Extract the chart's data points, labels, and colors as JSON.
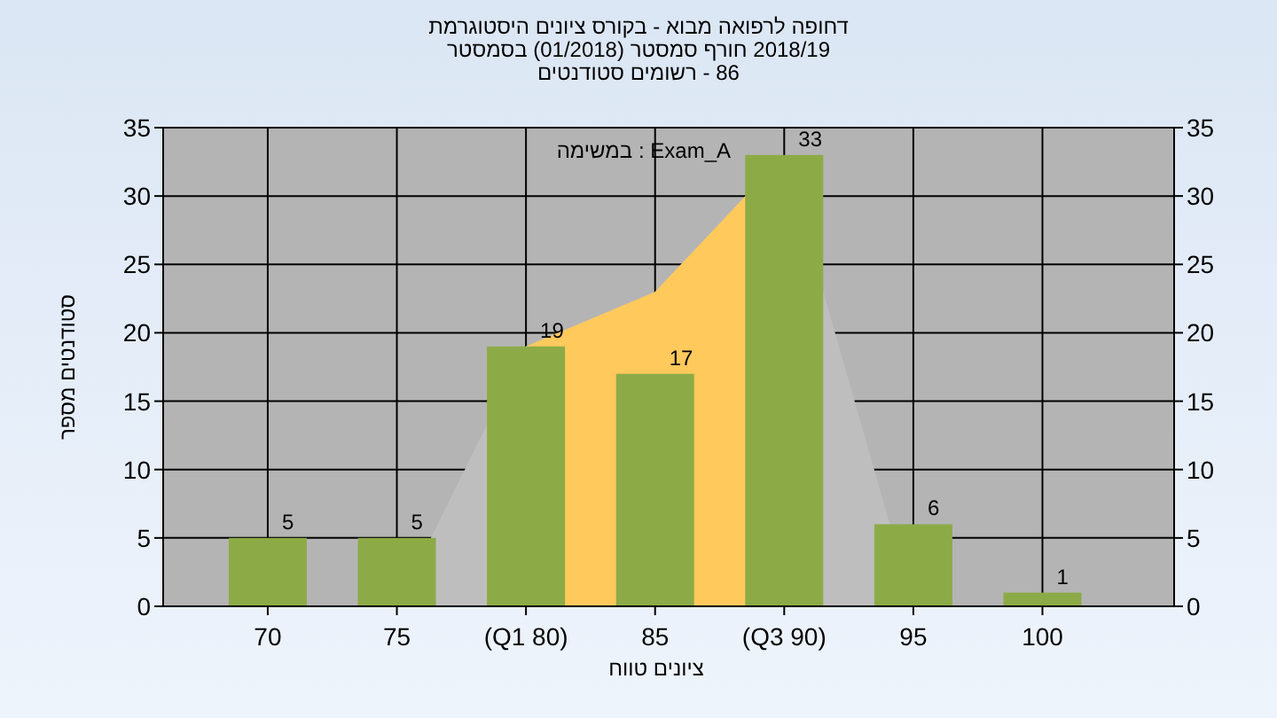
{
  "chart_data": {
    "type": "bar",
    "title": "היסטוגרמת ציונים בקורס - מבוא לרפואה דחופה",
    "subtitle": "בסמסטר (01/2018) סמסטר חורף 2018/19",
    "annotations": [
      "סטודנטים רשומים - 86",
      "במשימה : Exam_A"
    ],
    "xlabel": "טווח ציונים",
    "ylabel": "מספר סטודנטים",
    "categories": [
      "70",
      "75",
      "(Q1 80)",
      "85",
      "(Q3 90)",
      "95",
      "100"
    ],
    "series": [
      {
        "type": "area",
        "color": "#bebebe",
        "values": [
          null,
          0,
          19,
          23,
          33,
          0,
          null
        ]
      },
      {
        "type": "area",
        "color": "#ffc95c",
        "values": [
          null,
          null,
          19,
          23,
          33,
          null,
          null
        ]
      },
      {
        "color": "#8cab47",
        "values": [
          5,
          5,
          19,
          17,
          33,
          6,
          1
        ],
        "value_labels": [
          "5",
          "5",
          "19",
          "17",
          "33",
          "6",
          "1"
        ]
      }
    ],
    "ylim": [
      0,
      35
    ],
    "yticks": [
      0,
      5,
      10,
      15,
      20,
      25,
      30,
      35
    ],
    "y2lim": [
      0,
      35
    ],
    "y2ticks": [
      0,
      5,
      10,
      15,
      20,
      25,
      30,
      35
    ],
    "grid": true
  }
}
